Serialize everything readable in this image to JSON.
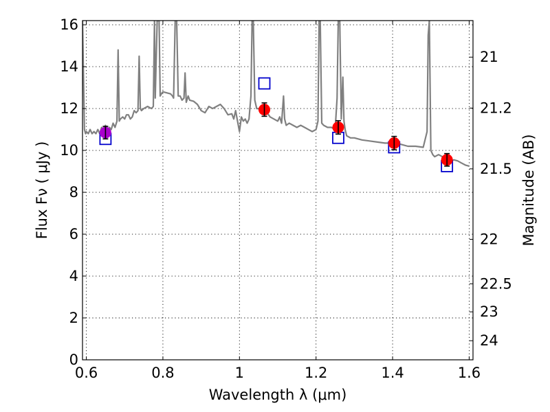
{
  "chart_data": {
    "type": "scatter",
    "title": "",
    "xlabel": "Wavelength  λ (μm)",
    "ylabel": "Flux  Fν  ( μJy )",
    "y2label": "Magnitude (AB)",
    "xlim": [
      0.59,
      1.61
    ],
    "ylim": [
      0,
      16.2
    ],
    "grid": true,
    "x_ticks": [
      0.6,
      0.8,
      1.0,
      1.2,
      1.4,
      1.6
    ],
    "x_tick_labels": [
      "0.6",
      "0.8",
      "1",
      "1.2",
      "1.4",
      "1.6"
    ],
    "y_ticks": [
      0,
      2,
      4,
      6,
      8,
      10,
      12,
      14,
      16
    ],
    "y_tick_labels": [
      "0",
      "2",
      "4",
      "6",
      "8",
      "10",
      "12",
      "14",
      "16"
    ],
    "y2_ticks": [
      {
        "label": "21",
        "mag": 21.0
      },
      {
        "label": "21.2",
        "mag": 21.2
      },
      {
        "label": "21.5",
        "mag": 21.5
      },
      {
        "label": "22",
        "mag": 22.0
      },
      {
        "label": "22.5",
        "mag": 22.5
      },
      {
        "label": "23",
        "mag": 23.0
      },
      {
        "label": "24",
        "mag": 24.0
      }
    ],
    "series": [
      {
        "kind": "spectrum",
        "color": "#808080",
        "x": [
          0.59,
          0.595,
          0.598,
          0.6,
          0.605,
          0.61,
          0.615,
          0.62,
          0.625,
          0.63,
          0.635,
          0.64,
          0.645,
          0.65,
          0.655,
          0.66,
          0.665,
          0.67,
          0.675,
          0.68,
          0.683,
          0.686,
          0.689,
          0.695,
          0.7,
          0.705,
          0.71,
          0.715,
          0.72,
          0.725,
          0.73,
          0.735,
          0.738,
          0.741,
          0.744,
          0.75,
          0.76,
          0.77,
          0.775,
          0.778,
          0.78,
          0.785,
          0.79,
          0.793,
          0.796,
          0.8,
          0.81,
          0.82,
          0.825,
          0.828,
          0.832,
          0.836,
          0.84,
          0.845,
          0.85,
          0.855,
          0.858,
          0.861,
          0.866,
          0.87,
          0.88,
          0.89,
          0.9,
          0.91,
          0.92,
          0.93,
          0.94,
          0.95,
          0.96,
          0.97,
          0.98,
          0.985,
          0.99,
          0.995,
          1.0,
          1.005,
          1.01,
          1.015,
          1.02,
          1.025,
          1.03,
          1.033,
          1.036,
          1.04,
          1.045,
          1.05,
          1.055,
          1.06,
          1.065,
          1.07,
          1.08,
          1.09,
          1.1,
          1.105,
          1.11,
          1.115,
          1.118,
          1.122,
          1.13,
          1.14,
          1.15,
          1.16,
          1.17,
          1.18,
          1.19,
          1.2,
          1.205,
          1.208,
          1.211,
          1.215,
          1.22,
          1.23,
          1.24,
          1.25,
          1.255,
          1.258,
          1.262,
          1.266,
          1.27,
          1.273,
          1.276,
          1.28,
          1.29,
          1.3,
          1.32,
          1.34,
          1.36,
          1.38,
          1.4,
          1.42,
          1.44,
          1.46,
          1.48,
          1.49,
          1.493,
          1.496,
          1.5,
          1.505,
          1.51,
          1.52,
          1.53,
          1.54,
          1.55,
          1.56,
          1.57,
          1.58,
          1.59,
          1.6
        ],
        "y": [
          16.2,
          11.0,
          10.8,
          10.9,
          10.8,
          11.0,
          10.8,
          10.9,
          10.8,
          11.0,
          10.8,
          11.1,
          10.9,
          11.2,
          10.9,
          11.1,
          11.0,
          11.3,
          11.1,
          11.4,
          14.8,
          11.4,
          11.5,
          11.6,
          11.5,
          11.7,
          11.7,
          11.5,
          11.6,
          11.9,
          11.8,
          11.9,
          14.5,
          12.0,
          11.9,
          12.0,
          12.1,
          12.0,
          12.1,
          16.2,
          12.5,
          16.2,
          16.2,
          12.6,
          12.7,
          12.8,
          12.75,
          12.7,
          12.6,
          12.5,
          16.2,
          16.2,
          12.6,
          12.6,
          12.4,
          12.5,
          13.7,
          12.3,
          12.6,
          12.4,
          12.35,
          12.2,
          11.9,
          11.8,
          12.1,
          12.0,
          12.1,
          12.2,
          12.0,
          11.7,
          11.75,
          11.5,
          11.9,
          11.4,
          10.9,
          11.6,
          11.4,
          11.5,
          11.3,
          11.5,
          12.6,
          16.2,
          16.2,
          12.4,
          12.0,
          12.0,
          11.8,
          11.9,
          11.9,
          11.85,
          11.6,
          11.5,
          11.4,
          11.6,
          11.3,
          12.6,
          11.5,
          11.2,
          11.3,
          11.2,
          11.1,
          11.2,
          11.1,
          11.0,
          10.9,
          11.0,
          11.4,
          16.2,
          16.2,
          11.3,
          11.2,
          11.1,
          11.1,
          11.0,
          12.5,
          16.2,
          16.2,
          11.5,
          13.5,
          11.4,
          11.0,
          10.7,
          10.6,
          10.6,
          10.5,
          10.45,
          10.4,
          10.35,
          10.35,
          10.3,
          10.2,
          10.2,
          10.15,
          10.9,
          15.5,
          16.2,
          10.0,
          9.8,
          9.7,
          9.8,
          9.7,
          9.6,
          9.5,
          9.55,
          9.5,
          9.4,
          9.3,
          9.25
        ]
      },
      {
        "kind": "observed",
        "name": "",
        "points": [
          {
            "x": 0.65,
            "y": 10.85,
            "err": 0.3,
            "color": "#aa00cc"
          },
          {
            "x": 1.065,
            "y": 11.95,
            "err": 0.32,
            "color": "#ff0000"
          },
          {
            "x": 1.258,
            "y": 11.1,
            "err": 0.32,
            "color": "#ff0000"
          },
          {
            "x": 1.404,
            "y": 10.35,
            "err": 0.32,
            "color": "#ff0000"
          },
          {
            "x": 1.542,
            "y": 9.55,
            "err": 0.3,
            "color": "#ff0000"
          }
        ]
      },
      {
        "kind": "model",
        "name": "",
        "color": "#0000cc",
        "points": [
          {
            "x": 0.65,
            "y": 10.55
          },
          {
            "x": 1.065,
            "y": 13.2
          },
          {
            "x": 1.258,
            "y": 10.6
          },
          {
            "x": 1.404,
            "y": 10.15
          },
          {
            "x": 1.542,
            "y": 9.25
          }
        ]
      }
    ]
  }
}
